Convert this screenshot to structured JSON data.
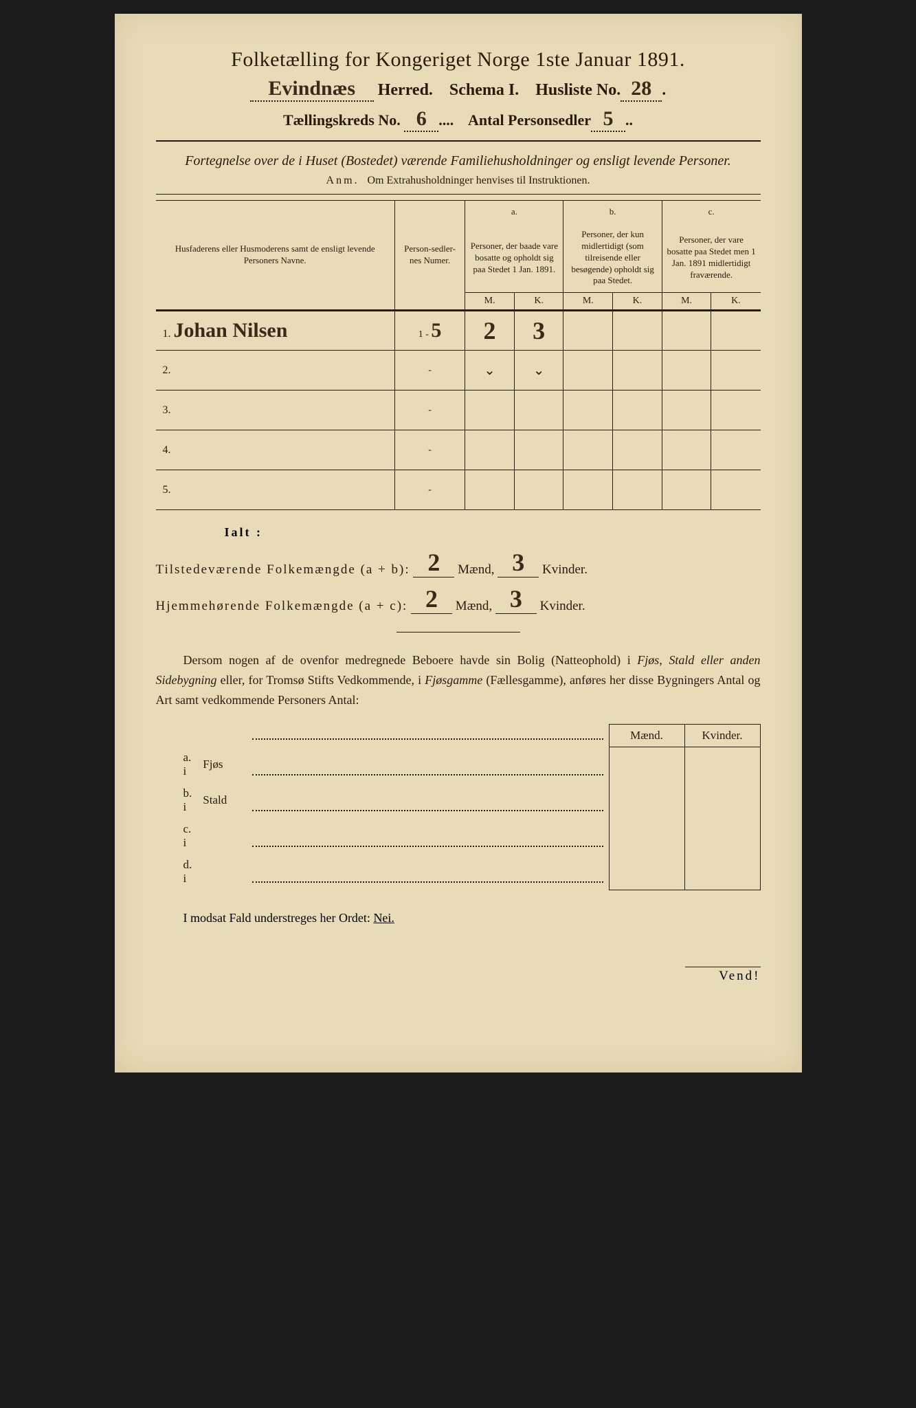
{
  "header": {
    "title": "Folketælling for Kongeriget Norge 1ste Januar 1891.",
    "herred_hand": "Evindnæs",
    "herred_label": "Herred.",
    "schema": "Schema I.",
    "husliste_label": "Husliste No.",
    "husliste_no": "28",
    "kreds_label": "Tællingskreds No.",
    "kreds_no": "6",
    "antal_label": "Antal Personsedler",
    "antal_no": "5"
  },
  "subtitle": "Fortegnelse over de i Huset (Bostedet) værende Familiehusholdninger og ensligt levende Personer.",
  "anm": {
    "prefix": "Anm.",
    "text": "Om Extrahusholdninger henvises til Instruktionen."
  },
  "table": {
    "col_name": "Husfaderens eller Husmoderens samt de ensligt levende Personers Navne.",
    "col_num": "Person-sedler-nes Numer.",
    "col_a_top": "a.",
    "col_a": "Personer, der baade vare bosatte og opholdt sig paa Stedet 1 Jan. 1891.",
    "col_b_top": "b.",
    "col_b": "Personer, der kun midlertidigt (som tilreisende eller besøgende) opholdt sig paa Stedet.",
    "col_c_top": "c.",
    "col_c": "Personer, der vare bosatte paa Stedet men 1 Jan. 1891 midlertidigt fraværende.",
    "m": "M.",
    "k": "K.",
    "rows": [
      {
        "n": "1.",
        "name": "Johan Nilsen",
        "num": "1 - 5",
        "aM": "2",
        "aK": "3",
        "bM": "",
        "bK": "",
        "cM": "",
        "cK": ""
      },
      {
        "n": "2.",
        "name": "",
        "num": "-",
        "aM": "⌄",
        "aK": "⌄",
        "bM": "",
        "bK": "",
        "cM": "",
        "cK": ""
      },
      {
        "n": "3.",
        "name": "",
        "num": "-",
        "aM": "",
        "aK": "",
        "bM": "",
        "bK": "",
        "cM": "",
        "cK": ""
      },
      {
        "n": "4.",
        "name": "",
        "num": "-",
        "aM": "",
        "aK": "",
        "bM": "",
        "bK": "",
        "cM": "",
        "cK": ""
      },
      {
        "n": "5.",
        "name": "",
        "num": "-",
        "aM": "",
        "aK": "",
        "bM": "",
        "bK": "",
        "cM": "",
        "cK": ""
      }
    ]
  },
  "ialt": "Ialt :",
  "summary": {
    "line1_label": "Tilstedeværende Folkemængde (a + b):",
    "line1_m": "2",
    "line1_k": "3",
    "line2_label": "Hjemmehørende Folkemængde (a + c):",
    "line2_m": "2",
    "line2_k": "3",
    "maend": "Mænd,",
    "kvinder": "Kvinder."
  },
  "para": "Dersom nogen af de ovenfor medregnede Beboere havde sin Bolig (Natteophold) i Fjøs, Stald eller anden Sidebygning eller, for Tromsø Stifts Vedkommende, i Fjøsgamme (Fællesgamme), anføres her disse Bygningers Antal og Art samt vedkommende Personers Antal:",
  "bottom": {
    "maend": "Mænd.",
    "kvinder": "Kvinder.",
    "rows": [
      {
        "l": "a.  i",
        "t": "Fjøs"
      },
      {
        "l": "b.  i",
        "t": "Stald"
      },
      {
        "l": "c.  i",
        "t": ""
      },
      {
        "l": "d.  i",
        "t": ""
      }
    ]
  },
  "nei": {
    "text": "I modsat Fald understreges her Ordet:",
    "word": "Nei."
  },
  "vend": "Vend!"
}
